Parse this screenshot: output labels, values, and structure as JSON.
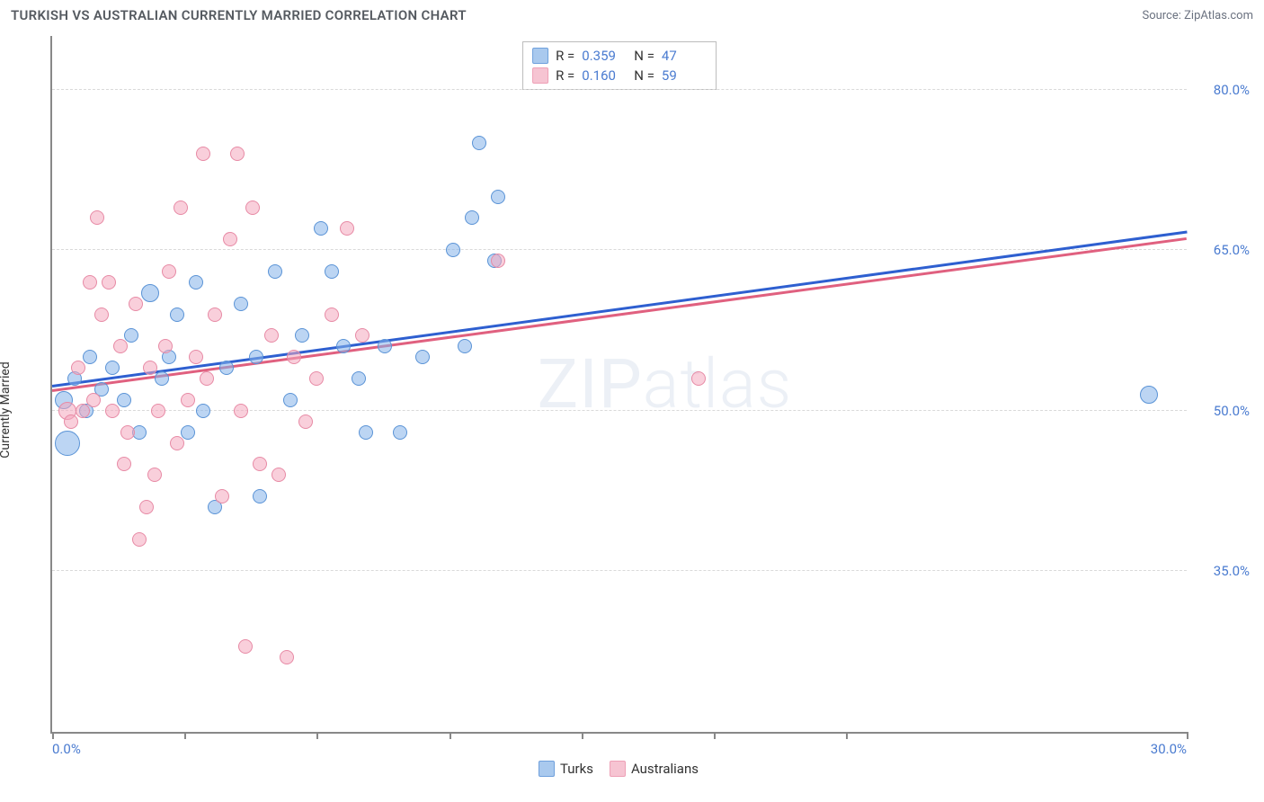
{
  "header": {
    "title": "TURKISH VS AUSTRALIAN CURRENTLY MARRIED CORRELATION CHART",
    "source": "Source: ZipAtlas.com"
  },
  "watermark": {
    "bold": "ZIP",
    "thin": "atlas"
  },
  "chart": {
    "type": "scatter",
    "ylabel": "Currently Married",
    "xlim": [
      0,
      30
    ],
    "ylim": [
      20,
      85
    ],
    "x_ticks": [
      0,
      3.5,
      7,
      10.5,
      14,
      17.5,
      21,
      30
    ],
    "x_tick_labels": {
      "0": "0.0%",
      "30": "30.0%"
    },
    "y_gridlines": [
      35,
      50,
      65,
      80
    ],
    "y_tick_labels": {
      "35": "35.0%",
      "50": "50.0%",
      "65": "65.0%",
      "80": "80.0%"
    },
    "grid_color": "#d9d9d9",
    "axis_color": "#888888",
    "tick_label_color": "#4a7bd0",
    "point_radius": 8,
    "series": [
      {
        "key": "turks",
        "label": "Turks",
        "fill": "rgba(133,179,233,0.55)",
        "stroke": "#5a93d6",
        "swatch_fill": "#a9c9ee",
        "swatch_stroke": "#6fa0dc",
        "R": "0.359",
        "N": "47",
        "trend": {
          "x1": 0,
          "y1": 52.4,
          "x2": 30,
          "y2": 66.8,
          "color": "#2e5fd0"
        },
        "points": [
          {
            "x": 0.3,
            "y": 51,
            "r": 10
          },
          {
            "x": 0.4,
            "y": 47,
            "r": 14
          },
          {
            "x": 0.6,
            "y": 53,
            "r": 8
          },
          {
            "x": 0.9,
            "y": 50,
            "r": 8
          },
          {
            "x": 1.0,
            "y": 55,
            "r": 8
          },
          {
            "x": 1.3,
            "y": 52,
            "r": 8
          },
          {
            "x": 1.6,
            "y": 54,
            "r": 8
          },
          {
            "x": 1.9,
            "y": 51,
            "r": 8
          },
          {
            "x": 2.1,
            "y": 57,
            "r": 8
          },
          {
            "x": 2.3,
            "y": 48,
            "r": 8
          },
          {
            "x": 2.6,
            "y": 61,
            "r": 10
          },
          {
            "x": 2.9,
            "y": 53,
            "r": 8
          },
          {
            "x": 3.1,
            "y": 55,
            "r": 8
          },
          {
            "x": 3.3,
            "y": 59,
            "r": 8
          },
          {
            "x": 3.6,
            "y": 48,
            "r": 8
          },
          {
            "x": 3.8,
            "y": 62,
            "r": 8
          },
          {
            "x": 4.0,
            "y": 50,
            "r": 8
          },
          {
            "x": 4.3,
            "y": 41,
            "r": 8
          },
          {
            "x": 4.6,
            "y": 54,
            "r": 8
          },
          {
            "x": 5.0,
            "y": 60,
            "r": 8
          },
          {
            "x": 5.4,
            "y": 55,
            "r": 8
          },
          {
            "x": 5.5,
            "y": 42,
            "r": 8
          },
          {
            "x": 5.9,
            "y": 63,
            "r": 8
          },
          {
            "x": 6.3,
            "y": 51,
            "r": 8
          },
          {
            "x": 6.6,
            "y": 57,
            "r": 8
          },
          {
            "x": 7.1,
            "y": 67,
            "r": 8
          },
          {
            "x": 7.4,
            "y": 63,
            "r": 8
          },
          {
            "x": 7.7,
            "y": 56,
            "r": 8
          },
          {
            "x": 8.1,
            "y": 53,
            "r": 8
          },
          {
            "x": 8.3,
            "y": 48,
            "r": 8
          },
          {
            "x": 8.8,
            "y": 56,
            "r": 8
          },
          {
            "x": 9.2,
            "y": 48,
            "r": 8
          },
          {
            "x": 9.8,
            "y": 55,
            "r": 8
          },
          {
            "x": 10.6,
            "y": 65,
            "r": 8
          },
          {
            "x": 10.9,
            "y": 56,
            "r": 8
          },
          {
            "x": 11.1,
            "y": 68,
            "r": 8
          },
          {
            "x": 11.3,
            "y": 75,
            "r": 8
          },
          {
            "x": 11.7,
            "y": 64,
            "r": 8
          },
          {
            "x": 11.8,
            "y": 70,
            "r": 8
          },
          {
            "x": 29.0,
            "y": 51.5,
            "r": 10
          }
        ]
      },
      {
        "key": "australians",
        "label": "Australians",
        "fill": "rgba(244,168,189,0.55)",
        "stroke": "#e78aa5",
        "swatch_fill": "#f6c4d2",
        "swatch_stroke": "#eea0b6",
        "R": "0.160",
        "N": "59",
        "trend": {
          "x1": 0,
          "y1": 52.0,
          "x2": 30,
          "y2": 66.2,
          "color": "#e0607f"
        },
        "points": [
          {
            "x": 0.4,
            "y": 50,
            "r": 10
          },
          {
            "x": 0.5,
            "y": 49,
            "r": 8
          },
          {
            "x": 0.7,
            "y": 54,
            "r": 8
          },
          {
            "x": 0.8,
            "y": 50,
            "r": 8
          },
          {
            "x": 1.0,
            "y": 62,
            "r": 8
          },
          {
            "x": 1.1,
            "y": 51,
            "r": 8
          },
          {
            "x": 1.2,
            "y": 68,
            "r": 8
          },
          {
            "x": 1.3,
            "y": 59,
            "r": 8
          },
          {
            "x": 1.5,
            "y": 62,
            "r": 8
          },
          {
            "x": 1.6,
            "y": 50,
            "r": 8
          },
          {
            "x": 1.8,
            "y": 56,
            "r": 8
          },
          {
            "x": 1.9,
            "y": 45,
            "r": 8
          },
          {
            "x": 2.0,
            "y": 48,
            "r": 8
          },
          {
            "x": 2.2,
            "y": 60,
            "r": 8
          },
          {
            "x": 2.3,
            "y": 38,
            "r": 8
          },
          {
            "x": 2.5,
            "y": 41,
            "r": 8
          },
          {
            "x": 2.6,
            "y": 54,
            "r": 8
          },
          {
            "x": 2.7,
            "y": 44,
            "r": 8
          },
          {
            "x": 2.8,
            "y": 50,
            "r": 8
          },
          {
            "x": 3.0,
            "y": 56,
            "r": 8
          },
          {
            "x": 3.1,
            "y": 63,
            "r": 8
          },
          {
            "x": 3.3,
            "y": 47,
            "r": 8
          },
          {
            "x": 3.4,
            "y": 69,
            "r": 8
          },
          {
            "x": 3.6,
            "y": 51,
            "r": 8
          },
          {
            "x": 3.8,
            "y": 55,
            "r": 8
          },
          {
            "x": 4.0,
            "y": 74,
            "r": 8
          },
          {
            "x": 4.1,
            "y": 53,
            "r": 8
          },
          {
            "x": 4.3,
            "y": 59,
            "r": 8
          },
          {
            "x": 4.5,
            "y": 42,
            "r": 8
          },
          {
            "x": 4.7,
            "y": 66,
            "r": 8
          },
          {
            "x": 4.9,
            "y": 74,
            "r": 8
          },
          {
            "x": 5.0,
            "y": 50,
            "r": 8
          },
          {
            "x": 5.1,
            "y": 28,
            "r": 8
          },
          {
            "x": 5.3,
            "y": 69,
            "r": 8
          },
          {
            "x": 5.5,
            "y": 45,
            "r": 8
          },
          {
            "x": 5.8,
            "y": 57,
            "r": 8
          },
          {
            "x": 6.0,
            "y": 44,
            "r": 8
          },
          {
            "x": 6.2,
            "y": 27,
            "r": 8
          },
          {
            "x": 6.4,
            "y": 55,
            "r": 8
          },
          {
            "x": 6.7,
            "y": 49,
            "r": 8
          },
          {
            "x": 7.0,
            "y": 53,
            "r": 8
          },
          {
            "x": 7.4,
            "y": 59,
            "r": 8
          },
          {
            "x": 7.8,
            "y": 67,
            "r": 8
          },
          {
            "x": 8.2,
            "y": 57,
            "r": 8
          },
          {
            "x": 11.8,
            "y": 64,
            "r": 8
          },
          {
            "x": 17.1,
            "y": 53,
            "r": 8
          }
        ]
      }
    ],
    "legend_top": {
      "R_label": "R =",
      "N_label": "N ="
    },
    "legend_bottom": true
  }
}
